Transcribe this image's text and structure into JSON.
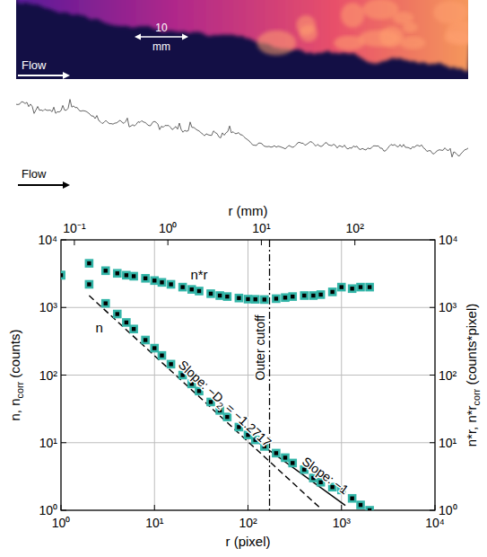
{
  "image": {
    "flow_label": "Flow",
    "scale_bar": [
      "10",
      "mm"
    ],
    "contour_flow_label": "Flow"
  },
  "chart_data": {
    "type": "scatter",
    "log": true,
    "grid": true,
    "xlabel": "r (pixel)",
    "x2label": "r (mm)",
    "ylabel": [
      "n, n",
      "corr",
      " (counts)"
    ],
    "y2label": [
      "n*r, n*r",
      "corr",
      " (counts*pixel)"
    ],
    "xlim": [
      1,
      10000
    ],
    "xticks": [
      {
        "value": 1,
        "label": "10⁰"
      },
      {
        "value": 10,
        "label": "10¹"
      },
      {
        "value": 100,
        "label": "10²"
      },
      {
        "value": 1000,
        "label": "10³"
      },
      {
        "value": 10000,
        "label": "10⁴"
      }
    ],
    "x2lim": [
      0.0719,
      719
    ],
    "x2ticks": [
      {
        "value": 0.1,
        "label": "10⁻¹"
      },
      {
        "value": 1,
        "label": "10⁰"
      },
      {
        "value": 10,
        "label": "10¹"
      },
      {
        "value": 100,
        "label": "10²"
      }
    ],
    "ylim": [
      1,
      10000
    ],
    "yticks": [
      {
        "value": 1,
        "label": "10⁰"
      },
      {
        "value": 10,
        "label": "10¹"
      },
      {
        "value": 100,
        "label": "10²"
      },
      {
        "value": 1000,
        "label": "10³"
      },
      {
        "value": 10000,
        "label": "10⁴"
      }
    ],
    "y2lim": [
      1,
      10000
    ],
    "y2ticks": [
      {
        "value": 1,
        "label": "10⁰"
      },
      {
        "value": 10,
        "label": "10¹"
      },
      {
        "value": 100,
        "label": "10²"
      },
      {
        "value": 1000,
        "label": "10³"
      },
      {
        "value": 10000,
        "label": "10⁴"
      }
    ],
    "x": [
      1,
      2,
      3,
      4,
      5,
      6,
      8,
      10,
      12,
      15,
      20,
      25,
      30,
      40,
      50,
      60,
      80,
      100,
      120,
      150,
      200,
      250,
      300,
      400,
      500,
      600,
      800,
      1000,
      1300,
      1600,
      2000
    ],
    "series": [
      {
        "name": "n",
        "color": "#33b5a8",
        "marker": "square",
        "line_style": "none",
        "values": [
          3000,
          2200,
          1150,
          800,
          600,
          480,
          330,
          250,
          195,
          145,
          100,
          74,
          58,
          40,
          30,
          24,
          17,
          13,
          11,
          8.8,
          7,
          6,
          5,
          4,
          3,
          2.6,
          2.2,
          2,
          1.5,
          1.2,
          1
        ]
      },
      {
        "name": "n*r",
        "color": "#33b5a8",
        "marker": "square",
        "line_style": "none",
        "axis": "y2",
        "values": [
          3000,
          4500,
          3500,
          3200,
          3000,
          2900,
          2700,
          2500,
          2350,
          2200,
          2000,
          1850,
          1750,
          1600,
          1500,
          1450,
          1380,
          1330,
          1320,
          1310,
          1350,
          1400,
          1450,
          1500,
          1500,
          1550,
          1700,
          2000,
          1900,
          2000,
          2000
        ]
      }
    ],
    "fits": [
      {
        "label": [
          "Slope: −D",
          "2",
          " = −1.2717"
        ],
        "x": [
          2,
          600
        ],
        "y": [
          1500,
          1.06
        ],
        "line_style": "dashed",
        "color": "#000000"
      },
      {
        "label": [
          "Slope: −1"
        ],
        "x": [
          100,
          1100
        ],
        "y": [
          13,
          1.18
        ],
        "line_style": "solid",
        "color": "#000000"
      }
    ],
    "cutoff": {
      "x": 170,
      "label": "Outer cutoff",
      "line_style": "dashdot",
      "color": "#000000"
    }
  }
}
